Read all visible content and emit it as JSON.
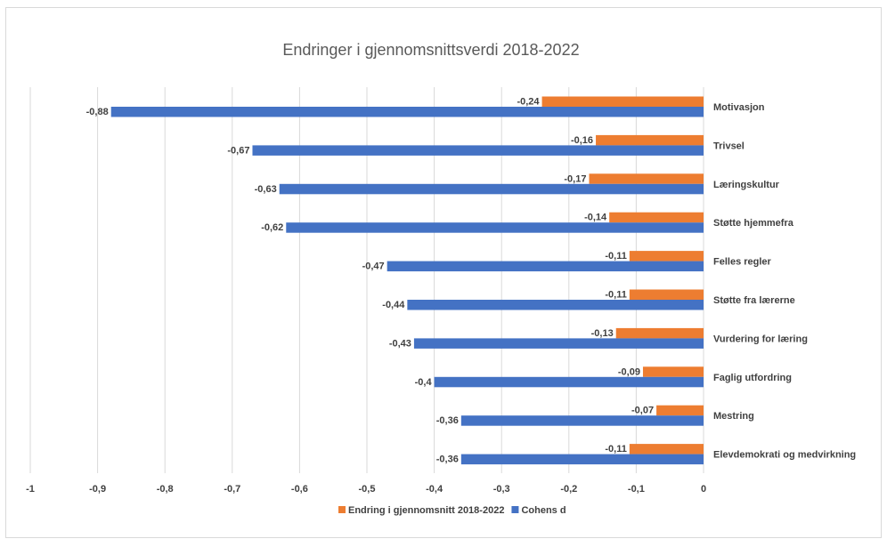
{
  "chart_data": {
    "type": "bar",
    "orientation": "horizontal",
    "title": "Endringer i gjennomsnittsverdi 2018-2022",
    "xlim": [
      -1,
      0
    ],
    "xticks": [
      -1,
      -0.9,
      -0.8,
      -0.7,
      -0.6,
      -0.5,
      -0.4,
      -0.3,
      -0.2,
      -0.1,
      0
    ],
    "xtick_labels": [
      "-1",
      "-0,9",
      "-0,8",
      "-0,7",
      "-0,6",
      "-0,5",
      "-0,4",
      "-0,3",
      "-0,2",
      "-0,1",
      "0"
    ],
    "grid": true,
    "legend_position": "bottom",
    "categories": [
      "Motivasjon",
      "Trivsel",
      "Læringskultur",
      "Støtte hjemmefra",
      "Felles regler",
      "Støtte fra lærerne",
      "Vurdering for læring",
      "Faglig utfordring",
      "Mestring",
      "Elevdemokrati og medvirkning"
    ],
    "series": [
      {
        "name": "Endring i gjennomsnitt 2018-2022",
        "color": "#ED7D31",
        "values": [
          -0.24,
          -0.16,
          -0.17,
          -0.14,
          -0.11,
          -0.11,
          -0.13,
          -0.09,
          -0.07,
          -0.11
        ],
        "labels": [
          "-0,24",
          "-0,16",
          "-0,17",
          "-0,14",
          "-0,11",
          "-0,11",
          "-0,13",
          "-0,09",
          "-0,07",
          "-0,11"
        ]
      },
      {
        "name": "Cohens d",
        "color": "#4472C4",
        "values": [
          -0.88,
          -0.67,
          -0.63,
          -0.62,
          -0.47,
          -0.44,
          -0.43,
          -0.4,
          -0.36,
          -0.36
        ],
        "labels": [
          "-0,88",
          "-0,67",
          "-0,63",
          "-0,62",
          "-0,47",
          "-0,44",
          "-0,43",
          "-0,4",
          "-0,36",
          "-0,36"
        ]
      }
    ]
  }
}
